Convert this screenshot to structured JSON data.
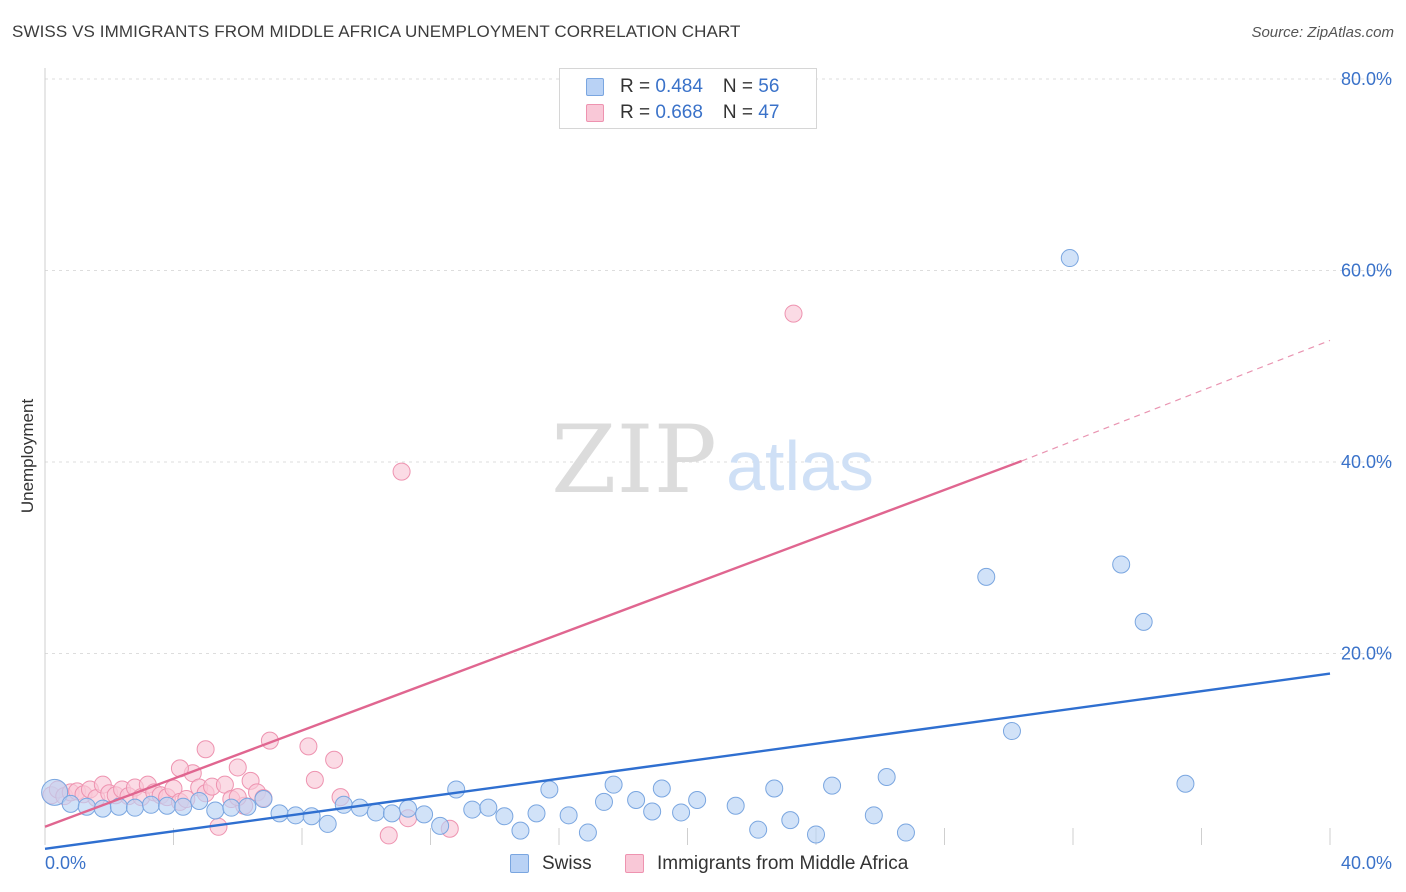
{
  "title": "SWISS VS IMMIGRANTS FROM MIDDLE AFRICA UNEMPLOYMENT CORRELATION CHART",
  "source": "Source: ZipAtlas.com",
  "watermark": {
    "zip": "ZIP",
    "atlas": "atlas"
  },
  "legend": {
    "rows": [
      {
        "r_label": "R = ",
        "r_value": "0.484",
        "n_label": "N = ",
        "n_value": "56"
      },
      {
        "r_label": "R = ",
        "r_value": "0.668",
        "n_label": "N = ",
        "n_value": "47"
      }
    ]
  },
  "bottom_legend": [
    "Swiss",
    "Immigrants from Middle Africa"
  ],
  "colors": {
    "swiss_fill": "#b9d2f5",
    "swiss_stroke": "#7aa6e0",
    "swiss_line": "#2f6fd0",
    "immig_fill": "#f9c8d7",
    "immig_stroke": "#ee93b0",
    "immig_line": "#e06690",
    "grid": "#dddddd",
    "axis_text": "#3a72c9"
  },
  "chart_data": {
    "type": "scatter",
    "title": "SWISS VS IMMIGRANTS FROM MIDDLE AFRICA UNEMPLOYMENT CORRELATION CHART",
    "xlabel": "",
    "ylabel": "Unemployment",
    "xlim": [
      0,
      40
    ],
    "ylim": [
      0,
      80
    ],
    "x_tick_labels": [
      "0.0%",
      "40.0%"
    ],
    "y_ticks": [
      20,
      40,
      60,
      80
    ],
    "y_tick_labels": [
      "20.0%",
      "40.0%",
      "60.0%",
      "80.0%"
    ],
    "grid": true,
    "series": [
      {
        "name": "Swiss",
        "r": 0.484,
        "n": 56,
        "trend": {
          "x0": 0,
          "y0": -0.4,
          "x1": 40,
          "y1": 17.9,
          "dashed_to": null
        },
        "points": [
          [
            0.3,
            5.5
          ],
          [
            0.8,
            4.3
          ],
          [
            1.3,
            4.0
          ],
          [
            1.8,
            3.8
          ],
          [
            2.3,
            4.0
          ],
          [
            2.8,
            3.9
          ],
          [
            3.3,
            4.2
          ],
          [
            3.8,
            4.1
          ],
          [
            4.3,
            4.0
          ],
          [
            4.8,
            4.6
          ],
          [
            5.3,
            3.6
          ],
          [
            5.8,
            3.9
          ],
          [
            6.3,
            4.0
          ],
          [
            6.8,
            4.8
          ],
          [
            7.3,
            3.3
          ],
          [
            7.8,
            3.1
          ],
          [
            8.3,
            3.0
          ],
          [
            8.8,
            2.2
          ],
          [
            9.3,
            4.2
          ],
          [
            9.8,
            3.9
          ],
          [
            10.3,
            3.4
          ],
          [
            10.8,
            3.3
          ],
          [
            11.3,
            3.8
          ],
          [
            11.8,
            3.2
          ],
          [
            12.3,
            2.0
          ],
          [
            12.8,
            5.8
          ],
          [
            13.3,
            3.7
          ],
          [
            13.8,
            3.9
          ],
          [
            14.3,
            3.0
          ],
          [
            14.8,
            1.5
          ],
          [
            15.3,
            3.3
          ],
          [
            15.7,
            5.8
          ],
          [
            16.3,
            3.1
          ],
          [
            16.9,
            1.3
          ],
          [
            17.4,
            4.5
          ],
          [
            17.7,
            6.3
          ],
          [
            18.4,
            4.7
          ],
          [
            18.9,
            3.5
          ],
          [
            19.2,
            5.9
          ],
          [
            19.8,
            3.4
          ],
          [
            20.3,
            4.7
          ],
          [
            21.5,
            4.1
          ],
          [
            22.2,
            1.6
          ],
          [
            22.7,
            5.9
          ],
          [
            23.2,
            2.6
          ],
          [
            24.0,
            1.1
          ],
          [
            24.5,
            6.2
          ],
          [
            25.8,
            3.1
          ],
          [
            26.2,
            7.1
          ],
          [
            26.8,
            1.3
          ],
          [
            29.3,
            28.0
          ],
          [
            30.1,
            11.9
          ],
          [
            31.9,
            61.3
          ],
          [
            33.5,
            29.3
          ],
          [
            34.2,
            23.3
          ],
          [
            35.5,
            6.4
          ]
        ]
      },
      {
        "name": "Immigrants from Middle Africa",
        "r": 0.668,
        "n": 47,
        "trend": {
          "x0": 0,
          "y0": 1.9,
          "x1": 30.4,
          "y1": 40.1,
          "dashed_to": {
            "x": 40,
            "y": 52.7
          }
        },
        "points": [
          [
            0.2,
            5.2
          ],
          [
            0.4,
            5.8
          ],
          [
            0.6,
            5.1
          ],
          [
            0.8,
            5.5
          ],
          [
            1.0,
            5.6
          ],
          [
            1.2,
            5.3
          ],
          [
            1.4,
            5.8
          ],
          [
            1.6,
            4.9
          ],
          [
            1.8,
            6.3
          ],
          [
            2.0,
            5.4
          ],
          [
            2.2,
            5.2
          ],
          [
            2.4,
            5.8
          ],
          [
            2.6,
            5.1
          ],
          [
            2.8,
            6.0
          ],
          [
            3.0,
            5.0
          ],
          [
            3.2,
            6.3
          ],
          [
            3.4,
            5.5
          ],
          [
            3.6,
            5.2
          ],
          [
            3.8,
            5.0
          ],
          [
            4.0,
            5.9
          ],
          [
            4.2,
            4.5
          ],
          [
            4.4,
            4.8
          ],
          [
            4.6,
            7.5
          ],
          [
            4.8,
            6.0
          ],
          [
            5.0,
            5.4
          ],
          [
            5.2,
            6.1
          ],
          [
            5.4,
            1.9
          ],
          [
            5.6,
            6.3
          ],
          [
            5.8,
            4.8
          ],
          [
            6.0,
            8.1
          ],
          [
            6.2,
            4.1
          ],
          [
            6.4,
            6.7
          ],
          [
            6.6,
            5.5
          ],
          [
            6.8,
            4.9
          ],
          [
            4.2,
            8.0
          ],
          [
            5.0,
            10.0
          ],
          [
            7.0,
            10.9
          ],
          [
            8.2,
            10.3
          ],
          [
            8.4,
            6.8
          ],
          [
            9.0,
            8.9
          ],
          [
            9.2,
            5.0
          ],
          [
            10.7,
            1.0
          ],
          [
            11.1,
            39.0
          ],
          [
            11.3,
            2.8
          ],
          [
            12.6,
            1.7
          ],
          [
            23.3,
            55.5
          ],
          [
            6.0,
            5.0
          ]
        ]
      }
    ]
  }
}
